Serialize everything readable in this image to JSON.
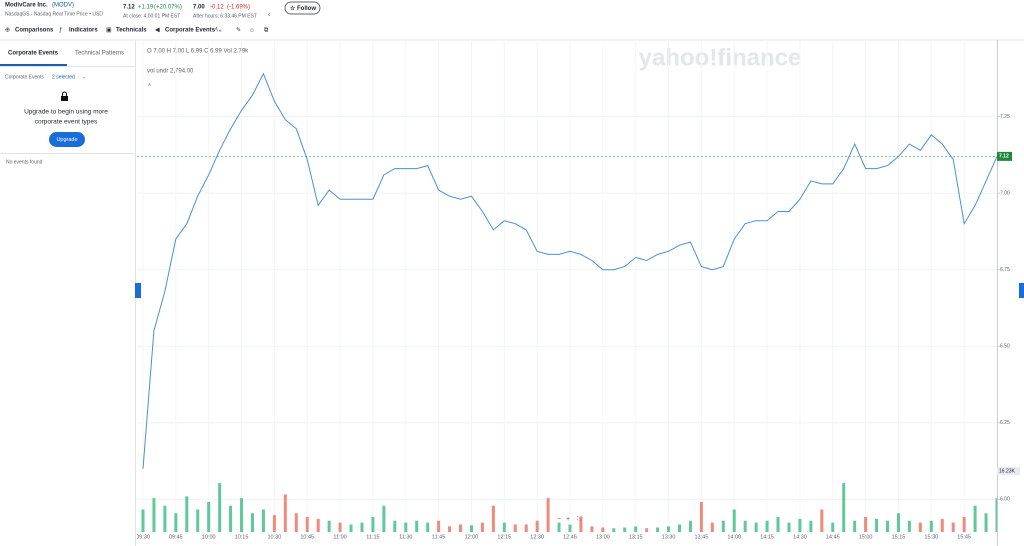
{
  "header": {
    "company": "ModivCare Inc.",
    "ticker": "(MODV)",
    "exchange": "NasdaqGS - Nasdaq Real Time Price • USD",
    "price": "7.12",
    "change": "+1.19",
    "change_pct": "(+20.07%)",
    "close_time": "At close: 4:00:01 PM EST",
    "ah_price": "7.00",
    "ah_change": "-0.12",
    "ah_change_pct": "(-1.69%)",
    "ah_time": "After hours: 6:33:46 PM EST",
    "follow": "Follow"
  },
  "toolbar": [
    "Comparisons",
    "Indicators",
    "Technicals",
    "Corporate Events"
  ],
  "panel": {
    "tabs": [
      "Corporate Events",
      "Technical Patterns"
    ],
    "filter_label": "Corporate Events",
    "filter_value": "2 selected",
    "upgrade_text": [
      "Upgrade to begin using more",
      "corporate event types"
    ],
    "upgrade_button": "Upgrade",
    "empty": "No events found"
  },
  "chart_data": {
    "type": "line",
    "watermark": "yahoo!finance",
    "legend": "O 7.00  H 7.00  L 6.99  C 6.99  Vol 2.79k",
    "volume_legend": "vol undr  2,794.00",
    "categories": [
      "09:30",
      null,
      null,
      "09:45",
      null,
      null,
      "10:00",
      null,
      null,
      "10:15",
      null,
      null,
      "10:30",
      null,
      null,
      "10:45",
      null,
      null,
      "11:00",
      null,
      null,
      "11:15",
      null,
      null,
      "11:30",
      null,
      null,
      "11:45",
      null,
      null,
      "12:00",
      null,
      null,
      "12:15",
      null,
      null,
      "12:30",
      null,
      null,
      "12:45",
      null,
      null,
      "13:00",
      null,
      null,
      "13:15",
      null,
      null,
      "13:30",
      null,
      null,
      "13:45",
      null,
      null,
      "14:00",
      null,
      null,
      "14:15",
      null,
      null,
      "14:30",
      null,
      null,
      "14:45",
      null,
      null,
      "15:00",
      null,
      null,
      "15:15",
      null,
      null,
      "15:30",
      null,
      null,
      "15:45",
      null,
      null,
      null
    ],
    "series": [
      {
        "name": "MODV",
        "color": "#4a8fd9",
        "values": [
          6.1,
          6.55,
          6.68,
          6.85,
          6.9,
          6.99,
          7.06,
          7.14,
          7.21,
          7.27,
          7.32,
          7.39,
          7.3,
          7.24,
          7.21,
          7.11,
          6.96,
          7.01,
          6.98,
          6.98,
          6.98,
          6.98,
          7.06,
          7.08,
          7.08,
          7.08,
          7.09,
          7.01,
          6.99,
          6.98,
          6.99,
          6.94,
          6.88,
          6.91,
          6.9,
          6.88,
          6.81,
          6.8,
          6.8,
          6.81,
          6.8,
          6.78,
          6.75,
          6.75,
          6.76,
          6.79,
          6.78,
          6.8,
          6.81,
          6.83,
          6.84,
          6.76,
          6.75,
          6.76,
          6.85,
          6.9,
          6.91,
          6.91,
          6.94,
          6.94,
          6.98,
          7.04,
          7.03,
          7.03,
          7.08,
          7.16,
          7.08,
          7.08,
          7.09,
          7.12,
          7.16,
          7.14,
          7.19,
          7.16,
          7.11,
          6.9,
          6.96,
          7.04,
          7.12
        ]
      },
      {
        "name": "Volume",
        "axis": "y2",
        "up_color": "#5fc99a",
        "down_color": "#ef8a7c",
        "values": [
          6000,
          9000,
          7000,
          5000,
          9500,
          6000,
          8000,
          13000,
          7000,
          9000,
          5000,
          6000,
          4500,
          10000,
          5000,
          4000,
          3500,
          3000,
          2500,
          2000,
          2500,
          4000,
          7000,
          3000,
          2500,
          3000,
          2500,
          3000,
          1500,
          2000,
          1800,
          2500,
          7000,
          2500,
          2000,
          2000,
          3000,
          9000,
          2500,
          2000,
          4000,
          1500,
          1200,
          1000,
          1200,
          1500,
          1000,
          1200,
          1500,
          2000,
          3000,
          8000,
          2500,
          3000,
          6000,
          3000,
          2500,
          3000,
          4000,
          2500,
          3500,
          3000,
          6000,
          2500,
          13000,
          3000,
          4000,
          3500,
          3000,
          5000,
          3000,
          2500,
          3000,
          3500,
          2500,
          4000,
          7000,
          5000,
          9000
        ]
      }
    ],
    "ylim": [
      5.9,
      7.5
    ],
    "yticks": [
      {
        "value": 6.0,
        "label": "6.00"
      },
      6.25,
      {
        "value": 6.5,
        "label": "6.50"
      },
      6.75,
      {
        "value": 7.0,
        "label": "7.00"
      },
      7.25
    ],
    "y2lim": [
      0,
      16230
    ],
    "y2ticks": [
      {
        "value": 16230,
        "label": "16.23K"
      }
    ],
    "last_price": 7.12,
    "grid": true
  }
}
